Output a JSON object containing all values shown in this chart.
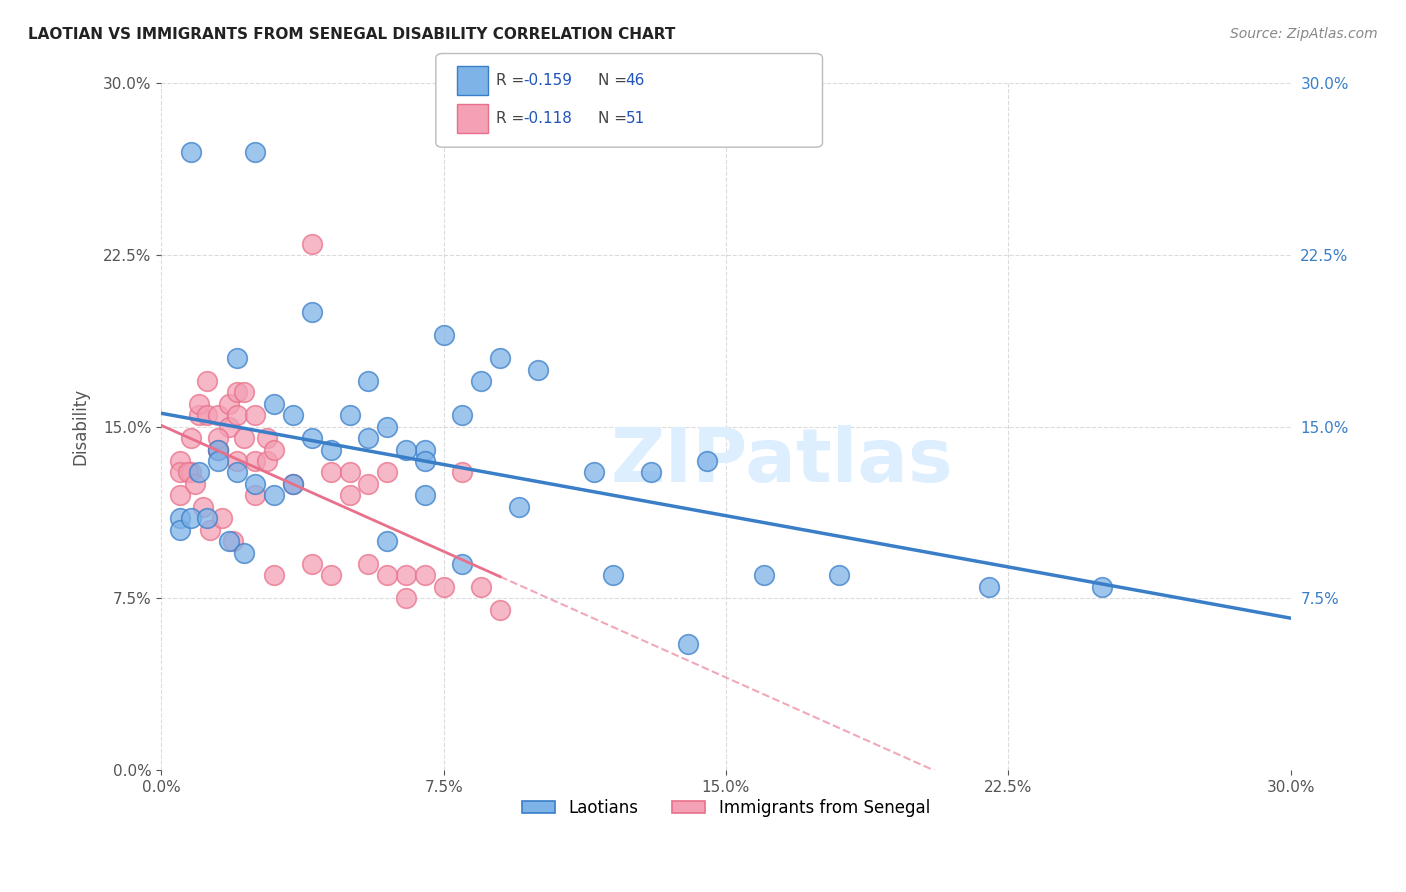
{
  "title": "LAOTIAN VS IMMIGRANTS FROM SENEGAL DISABILITY CORRELATION CHART",
  "source": "Source: ZipAtlas.com",
  "ylabel": "Disability",
  "xlim": [
    0.0,
    0.3
  ],
  "ylim": [
    0.0,
    0.3
  ],
  "xtick_values": [
    0.0,
    0.075,
    0.15,
    0.225,
    0.3
  ],
  "ytick_values": [
    0.0,
    0.075,
    0.15,
    0.225,
    0.3
  ],
  "right_ytick_values": [
    0.075,
    0.15,
    0.225,
    0.3
  ],
  "laotian_R": -0.159,
  "laotian_N": 46,
  "senegal_R": -0.118,
  "senegal_N": 51,
  "laotian_color": "#7EB3E8",
  "senegal_color": "#F4A0B5",
  "laotian_line_color": "#3A7EC8",
  "senegal_line_color": "#E8708A",
  "background_color": "#FFFFFF",
  "grid_color": "#CCCCCC",
  "watermark_color": "#DDEEFF",
  "legend_val_color": "#2255BB",
  "laotian_x": [
    0.008,
    0.025,
    0.055,
    0.075,
    0.04,
    0.02,
    0.015,
    0.03,
    0.06,
    0.09,
    0.05,
    0.035,
    0.045,
    0.07,
    0.08,
    0.065,
    0.01,
    0.015,
    0.02,
    0.025,
    0.03,
    0.035,
    0.04,
    0.055,
    0.07,
    0.085,
    0.1,
    0.115,
    0.13,
    0.145,
    0.16,
    0.18,
    0.22,
    0.25,
    0.06,
    0.08,
    0.12,
    0.14,
    0.07,
    0.095,
    0.005,
    0.005,
    0.008,
    0.012,
    0.018,
    0.022
  ],
  "laotian_y": [
    0.27,
    0.27,
    0.17,
    0.19,
    0.2,
    0.18,
    0.14,
    0.16,
    0.15,
    0.18,
    0.155,
    0.155,
    0.14,
    0.14,
    0.155,
    0.14,
    0.13,
    0.135,
    0.13,
    0.125,
    0.12,
    0.125,
    0.145,
    0.145,
    0.135,
    0.17,
    0.175,
    0.13,
    0.13,
    0.135,
    0.085,
    0.085,
    0.08,
    0.08,
    0.1,
    0.09,
    0.085,
    0.055,
    0.12,
    0.115,
    0.11,
    0.105,
    0.11,
    0.11,
    0.1,
    0.095
  ],
  "senegal_x": [
    0.005,
    0.005,
    0.005,
    0.008,
    0.008,
    0.01,
    0.01,
    0.012,
    0.012,
    0.015,
    0.015,
    0.015,
    0.018,
    0.018,
    0.02,
    0.02,
    0.022,
    0.022,
    0.025,
    0.025,
    0.028,
    0.028,
    0.03,
    0.035,
    0.04,
    0.045,
    0.05,
    0.055,
    0.06,
    0.065,
    0.07,
    0.075,
    0.08,
    0.085,
    0.09,
    0.015,
    0.02,
    0.025,
    0.03,
    0.04,
    0.045,
    0.05,
    0.055,
    0.06,
    0.065,
    0.007,
    0.009,
    0.011,
    0.013,
    0.016,
    0.019
  ],
  "senegal_y": [
    0.135,
    0.13,
    0.12,
    0.145,
    0.13,
    0.155,
    0.16,
    0.17,
    0.155,
    0.155,
    0.14,
    0.14,
    0.16,
    0.15,
    0.165,
    0.155,
    0.165,
    0.145,
    0.155,
    0.135,
    0.145,
    0.135,
    0.14,
    0.125,
    0.23,
    0.13,
    0.13,
    0.125,
    0.13,
    0.085,
    0.085,
    0.08,
    0.13,
    0.08,
    0.07,
    0.145,
    0.135,
    0.12,
    0.085,
    0.09,
    0.085,
    0.12,
    0.09,
    0.085,
    0.075,
    0.13,
    0.125,
    0.115,
    0.105,
    0.11,
    0.1
  ]
}
